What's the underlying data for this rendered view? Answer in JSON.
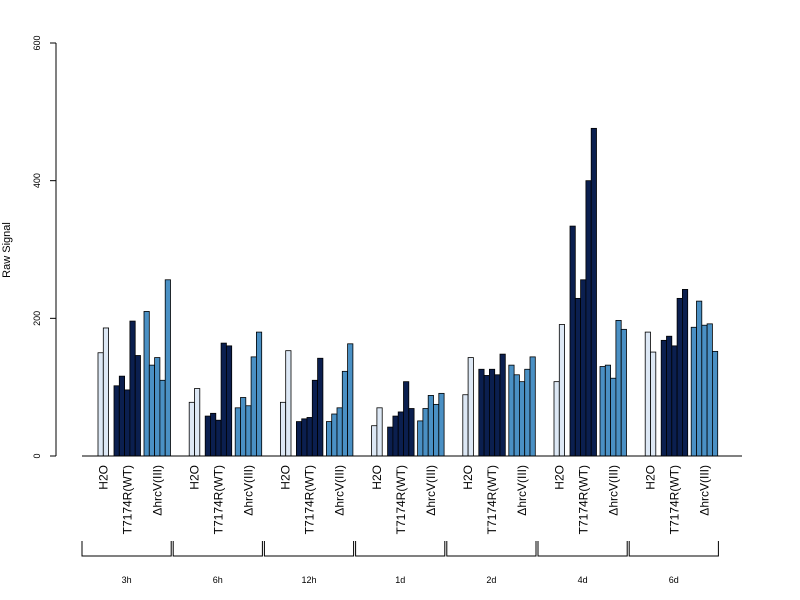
{
  "chart_data": {
    "type": "bar",
    "ylabel": "Raw Signal",
    "ylim": [
      0,
      600
    ],
    "yticks": [
      "0",
      "200",
      "400",
      "600"
    ],
    "grid": false,
    "colors": {
      "H2O": "#dde8f5",
      "T7174R(WT)": "#0b1f4f",
      "ΔhrcV(III)": "#4a90c4"
    },
    "group_order": [
      "H2O",
      "T7174R(WT)",
      "ΔhrcV(III)"
    ],
    "timepoints": [
      {
        "label": "3h",
        "groups": [
          {
            "name": "H2O",
            "values": [
              150,
              186
            ]
          },
          {
            "name": "T7174R(WT)",
            "values": [
              102,
              116,
              96,
              196,
              146
            ]
          },
          {
            "name": "ΔhrcV(III)",
            "values": [
              210,
              132,
              143,
              110,
              256
            ]
          }
        ]
      },
      {
        "label": "6h",
        "groups": [
          {
            "name": "H2O",
            "values": [
              78,
              98
            ]
          },
          {
            "name": "T7174R(WT)",
            "values": [
              58,
              62,
              52,
              164,
              160
            ]
          },
          {
            "name": "ΔhrcV(III)",
            "values": [
              70,
              85,
              73,
              144,
              180
            ]
          }
        ]
      },
      {
        "label": "12h",
        "groups": [
          {
            "name": "H2O",
            "values": [
              78,
              153
            ]
          },
          {
            "name": "T7174R(WT)",
            "values": [
              50,
              54,
              56,
              110,
              142
            ]
          },
          {
            "name": "ΔhrcV(III)",
            "values": [
              50,
              61,
              70,
              123,
              163
            ]
          }
        ]
      },
      {
        "label": "1d",
        "groups": [
          {
            "name": "H2O",
            "values": [
              44,
              70
            ]
          },
          {
            "name": "T7174R(WT)",
            "values": [
              42,
              58,
              64,
              108,
              69
            ]
          },
          {
            "name": "ΔhrcV(III)",
            "values": [
              51,
              69,
              88,
              75,
              91
            ]
          }
        ]
      },
      {
        "label": "2d",
        "groups": [
          {
            "name": "H2O",
            "values": [
              89,
              143
            ]
          },
          {
            "name": "T7174R(WT)",
            "values": [
              126,
              117,
              126,
              118,
              148
            ]
          },
          {
            "name": "ΔhrcV(III)",
            "values": [
              132,
              118,
              108,
              126,
              144
            ]
          }
        ]
      },
      {
        "label": "4d",
        "groups": [
          {
            "name": "H2O",
            "values": [
              108,
              191
            ]
          },
          {
            "name": "T7174R(WT)",
            "values": [
              334,
              229,
              256,
              400,
              476
            ]
          },
          {
            "name": "ΔhrcV(III)",
            "values": [
              130,
              132,
              113,
              197,
              184
            ]
          }
        ]
      },
      {
        "label": "6d",
        "groups": [
          {
            "name": "H2O",
            "values": [
              180,
              151
            ]
          },
          {
            "name": "T7174R(WT)",
            "values": [
              168,
              174,
              160,
              229,
              242
            ]
          },
          {
            "name": "ΔhrcV(III)",
            "values": [
              187,
              225,
              190,
              192,
              152
            ]
          }
        ]
      }
    ]
  }
}
